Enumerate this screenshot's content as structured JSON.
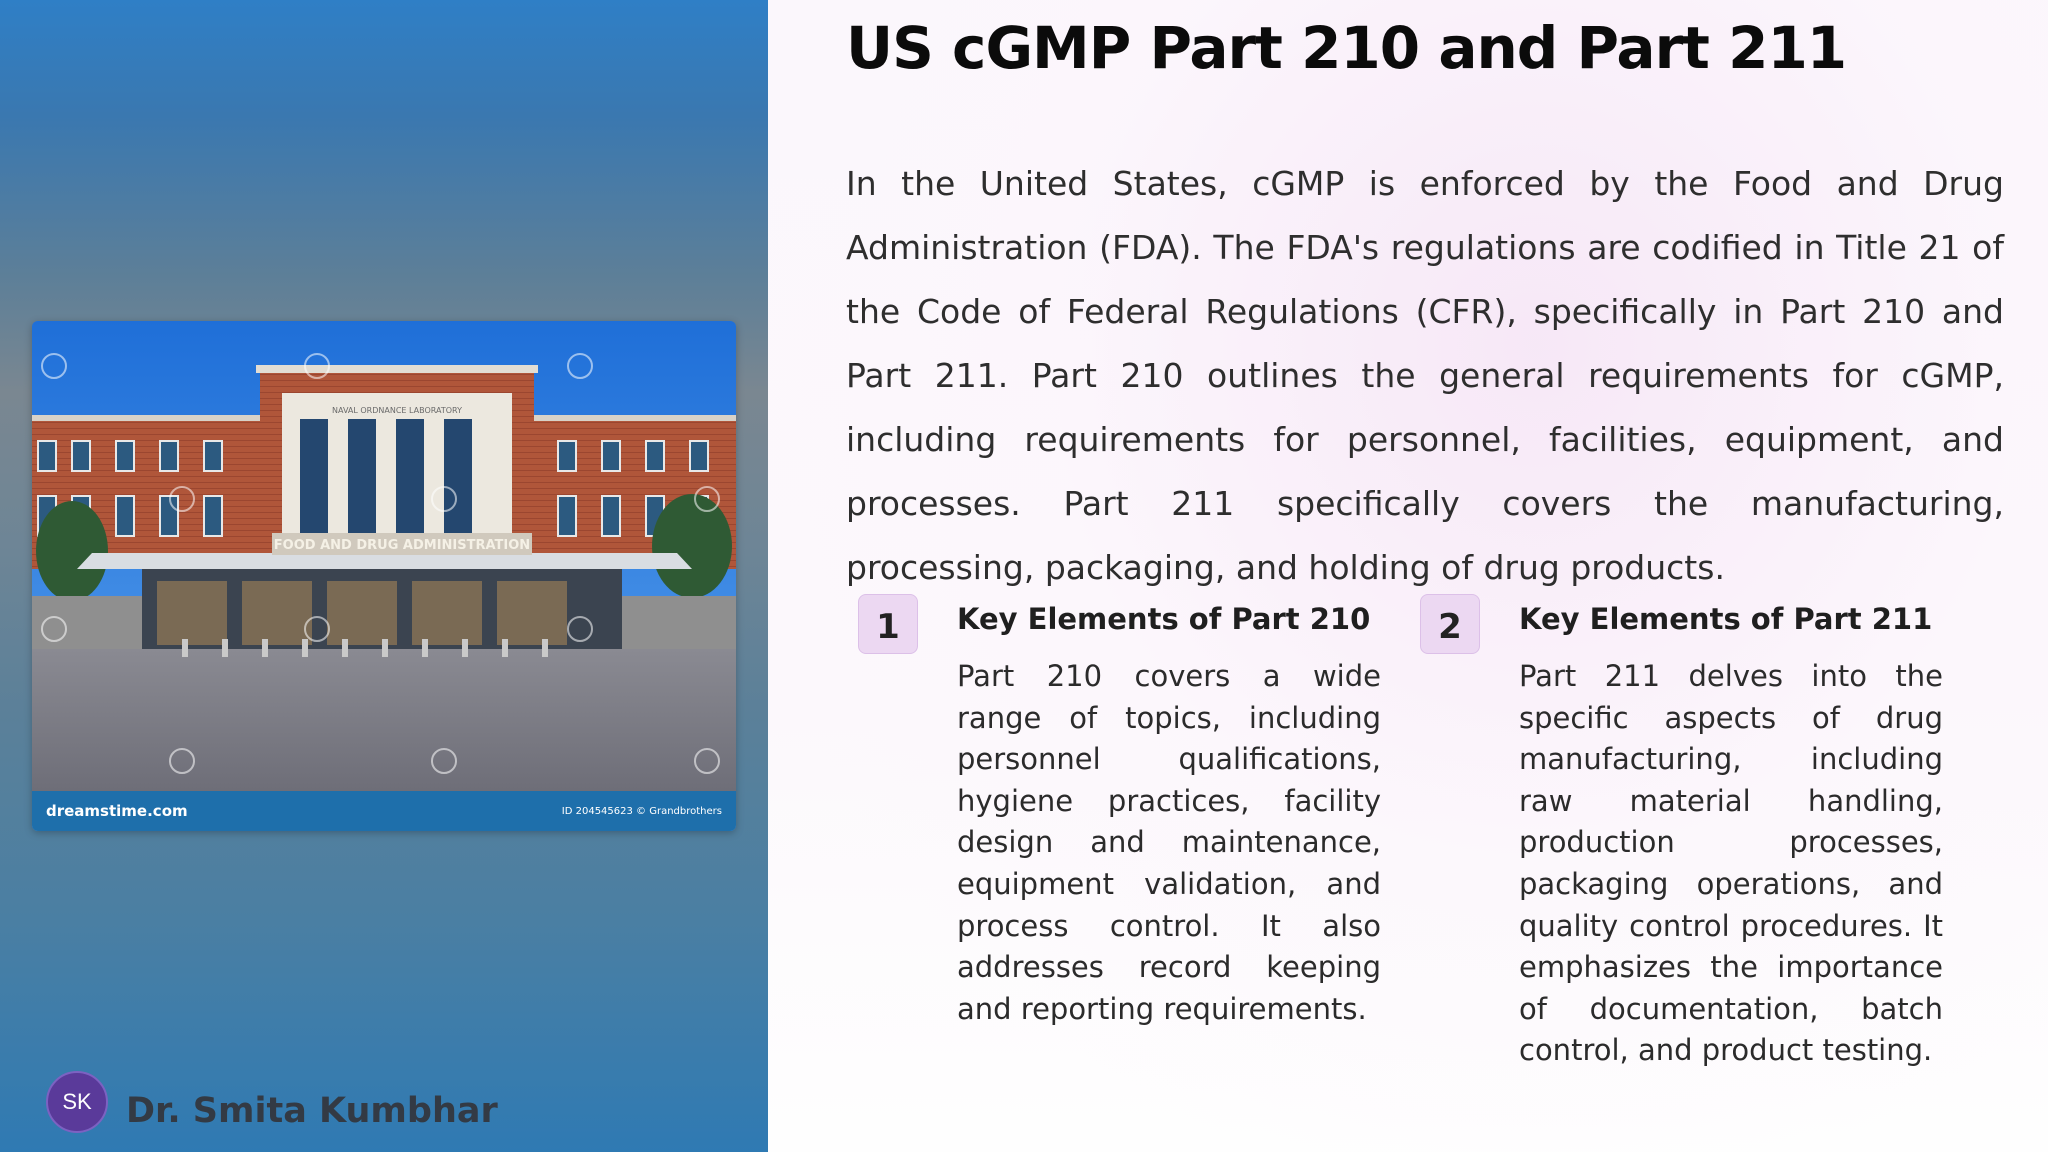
{
  "slide": {
    "title": "US cGMP Part 210 and Part 211",
    "intro": "In the United States, cGMP is enforced by the Food and Drug Administration (FDA). The FDA's regulations are codified in Title 21 of the Code of Federal Regulations (CFR), specifically in Part 210 and Part 211. Part 210 outlines the general requirements for cGMP, including requirements for personnel, facilities, equipment, and processes. Part 211 specifically covers the manufacturing, processing, packaging, and holding of drug products.",
    "cards": [
      {
        "number": "1",
        "title": "Key Elements of Part 210",
        "body": "Part 210 covers a wide range of topics, including personnel qualifications, hygiene practices, facility design and maintenance, equipment validation, and process control. It also addresses record keeping and reporting requirements."
      },
      {
        "number": "2",
        "title": "Key Elements of Part 211",
        "body": "Part 211 delves into the specific aspects of drug manufacturing, including raw material handling, production processes, packaging operations, and quality control procedures. It emphasizes the importance of documentation, batch control, and product testing."
      }
    ]
  },
  "photo": {
    "building_sign_top": "NAVAL ORDNANCE LABORATORY",
    "building_sign_main": "FOOD AND DRUG ADMINISTRATION",
    "watermark_brand": "dreamstime.com",
    "watermark_credit": "ID 204545623 © Grandbrothers"
  },
  "author": {
    "initials": "SK",
    "name": "Dr. Smita Kumbhar"
  },
  "colors": {
    "badge_bg": "#ecd8f2",
    "avatar_bg": "#5a3a9a",
    "photo_footer": "#1e6fab"
  }
}
